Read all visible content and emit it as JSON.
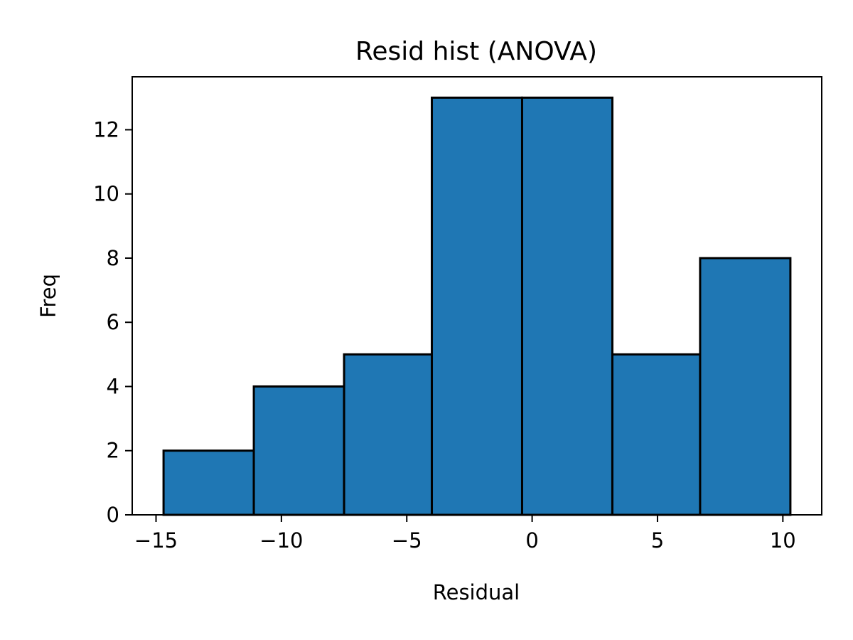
{
  "chart_data": {
    "type": "bar",
    "title": "Resid hist (ANOVA)",
    "xlabel": "Residual",
    "ylabel": "Freq",
    "bins": [
      {
        "start": -14.7,
        "end": -11.1,
        "count": 2
      },
      {
        "start": -11.1,
        "end": -7.5,
        "count": 4
      },
      {
        "start": -7.5,
        "end": -4.0,
        "count": 5
      },
      {
        "start": -4.0,
        "end": -0.4,
        "count": 13
      },
      {
        "start": -0.4,
        "end": 3.2,
        "count": 13
      },
      {
        "start": 3.2,
        "end": 6.7,
        "count": 5
      },
      {
        "start": 6.7,
        "end": 10.3,
        "count": 8
      }
    ],
    "xlim": [
      -15.95,
      11.55
    ],
    "ylim": [
      0,
      13.65
    ],
    "x_ticks": [
      -15,
      -10,
      -5,
      0,
      5,
      10
    ],
    "x_tick_labels": [
      "−15",
      "−10",
      "−5",
      "0",
      "5",
      "10"
    ],
    "y_ticks": [
      0,
      2,
      4,
      6,
      8,
      10,
      12
    ],
    "y_tick_labels": [
      "0",
      "2",
      "4",
      "6",
      "8",
      "10",
      "12"
    ],
    "bar_color": "#1f77b4",
    "edge_color": "#000000",
    "grid": false,
    "legend": "none"
  }
}
